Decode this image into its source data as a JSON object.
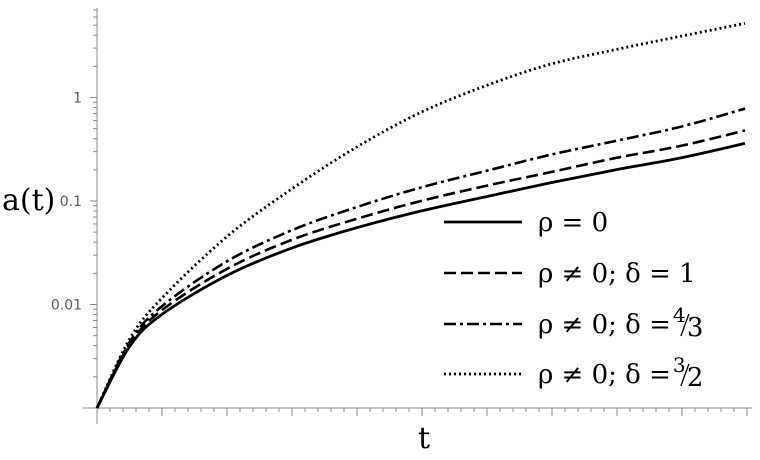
{
  "chart_data": {
    "type": "line",
    "ylabel": "a(t)",
    "xlabel": "t",
    "yscale": "log",
    "y_ticks": [
      {
        "value": 0.01,
        "label": "0.01"
      },
      {
        "value": 0.1,
        "label": "0.1"
      },
      {
        "value": 1,
        "label": "1"
      }
    ],
    "series": [
      {
        "name": "ρ = 0",
        "style": "solid",
        "x": [
          0,
          0.05,
          0.1,
          0.2,
          0.3,
          0.4,
          0.5,
          0.6,
          0.7,
          0.8,
          0.9,
          1.0
        ],
        "y": [
          0.001,
          0.0039,
          0.008,
          0.019,
          0.035,
          0.055,
          0.08,
          0.11,
          0.15,
          0.2,
          0.26,
          0.36
        ]
      },
      {
        "name": "ρ ≠ 0; δ = 1",
        "style": "dashed",
        "x": [
          0,
          0.05,
          0.1,
          0.2,
          0.3,
          0.4,
          0.5,
          0.6,
          0.7,
          0.8,
          0.9,
          1.0
        ],
        "y": [
          0.001,
          0.0041,
          0.0088,
          0.022,
          0.042,
          0.067,
          0.1,
          0.14,
          0.19,
          0.26,
          0.34,
          0.48
        ]
      },
      {
        "name": "ρ ≠ 0; δ = 4/3",
        "style": "dashdot",
        "x": [
          0,
          0.05,
          0.1,
          0.2,
          0.3,
          0.4,
          0.5,
          0.6,
          0.7,
          0.8,
          0.9,
          1.0
        ],
        "y": [
          0.001,
          0.0043,
          0.0096,
          0.026,
          0.052,
          0.087,
          0.135,
          0.195,
          0.28,
          0.38,
          0.52,
          0.78
        ]
      },
      {
        "name": "ρ ≠ 0; δ = 3/2",
        "style": "dotted",
        "x": [
          0,
          0.05,
          0.1,
          0.2,
          0.3,
          0.4,
          0.5,
          0.6,
          0.7,
          0.8,
          0.9,
          1.0
        ],
        "y": [
          0.001,
          0.0046,
          0.0115,
          0.045,
          0.13,
          0.33,
          0.72,
          1.3,
          2.1,
          2.9,
          3.9,
          5.2
        ]
      }
    ],
    "legend": {
      "placement": "lower-right",
      "entries": [
        {
          "prefix": "ρ = 0",
          "frac_num": "",
          "frac_den": ""
        },
        {
          "prefix": "ρ ≠ 0;  δ = 1",
          "frac_num": "",
          "frac_den": ""
        },
        {
          "prefix": "ρ ≠ 0;  δ = ",
          "frac_num": "4",
          "frac_den": "3"
        },
        {
          "prefix": "ρ ≠ 0;  δ = ",
          "frac_num": "3",
          "frac_den": "2"
        }
      ]
    },
    "grid": false
  }
}
